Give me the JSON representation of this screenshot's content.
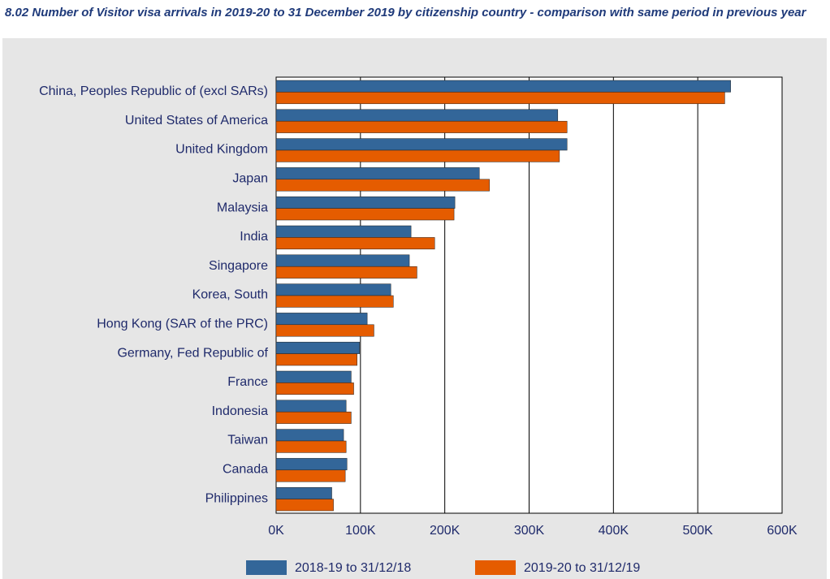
{
  "chart_data": {
    "type": "hbar",
    "title": "8.02 Number of Visitor visa arrivals in 2019-20 to 31 December 2019 by citizenship country - comparison with same period in previous year",
    "categories": [
      "China, Peoples Republic of (excl SARs)",
      "United States of America",
      "United Kingdom",
      "Japan",
      "Malaysia",
      "India",
      "Singapore",
      "Korea, South",
      "Hong Kong (SAR of the PRC)",
      "Germany, Fed Republic of",
      "France",
      "Indonesia",
      "Taiwan",
      "Canada",
      "Philippines"
    ],
    "series": [
      {
        "name": "2018-19 to 31/12/18",
        "color": "#336699",
        "values": [
          539000,
          334000,
          345000,
          241000,
          212000,
          160000,
          158000,
          136000,
          108000,
          99000,
          89000,
          83000,
          80000,
          84000,
          66000
        ]
      },
      {
        "name": "2019-20 to 31/12/19",
        "color": "#e55c00",
        "values": [
          532000,
          345000,
          336000,
          253000,
          211000,
          188000,
          167000,
          139000,
          116000,
          96000,
          92000,
          89000,
          83000,
          82000,
          68000
        ]
      }
    ],
    "xlim": [
      0,
      600000
    ],
    "xticks": [
      {
        "value": 0,
        "label": "0K"
      },
      {
        "value": 100000,
        "label": "100K"
      },
      {
        "value": 200000,
        "label": "200K"
      },
      {
        "value": 300000,
        "label": "300K"
      },
      {
        "value": 400000,
        "label": "400K"
      },
      {
        "value": 500000,
        "label": "500K"
      },
      {
        "value": 600000,
        "label": "600K"
      }
    ],
    "grid": true
  }
}
